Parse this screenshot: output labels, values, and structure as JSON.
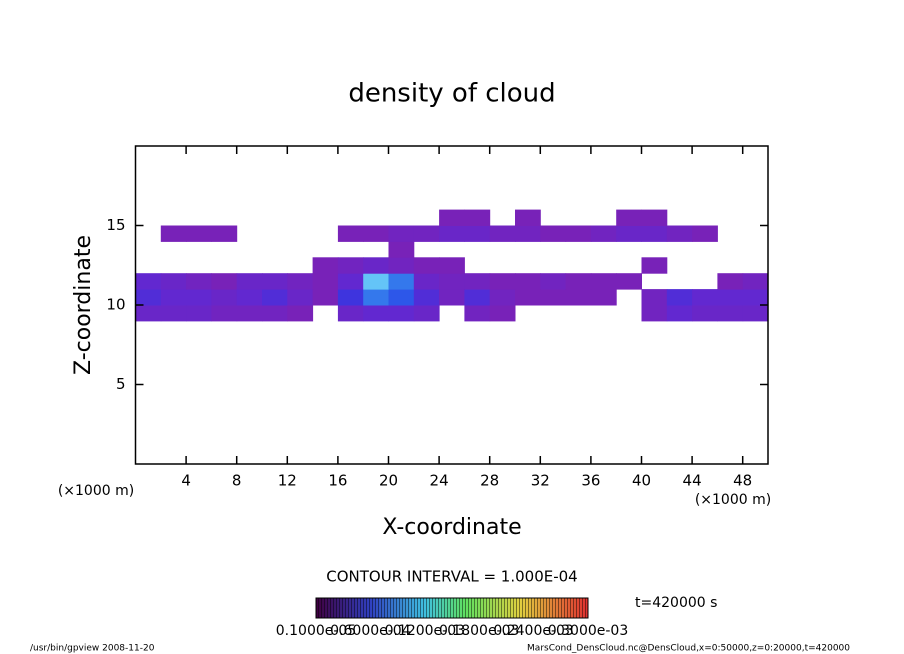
{
  "chart_data": {
    "type": "heatmap",
    "title": "density of cloud",
    "x_label": "X-coordinate",
    "y_label": "Z-coordinate",
    "x_unit": "(×1000 m)",
    "y_unit": "(×1000 m)",
    "xlim": [
      0,
      50
    ],
    "ylim": [
      0,
      20
    ],
    "xticks": [
      4,
      8,
      12,
      16,
      20,
      24,
      28,
      32,
      36,
      40,
      44,
      48
    ],
    "yticks": [
      5,
      10,
      15
    ],
    "x_edges": [
      0,
      2,
      4,
      6,
      8,
      10,
      12,
      14,
      16,
      18,
      20,
      22,
      24,
      26,
      28,
      30,
      32,
      34,
      36,
      38,
      40,
      42,
      44,
      46,
      48,
      50
    ],
    "y_edges": [
      9,
      10,
      11,
      12,
      13,
      14,
      15,
      16
    ],
    "clim": [
      0,
      0.00012
    ],
    "z": [
      [
        3e-05,
        3e-05,
        3e-05,
        2e-05,
        2e-05,
        2e-05,
        1e-05,
        null,
        3e-05,
        4e-05,
        4e-05,
        3e-05,
        null,
        2e-05,
        1e-05,
        null,
        null,
        null,
        null,
        null,
        2e-05,
        4e-05,
        3e-05,
        3e-05,
        3e-05
      ],
      [
        5e-05,
        4e-05,
        4e-05,
        3e-05,
        4e-05,
        5e-05,
        3e-05,
        1e-05,
        6e-05,
        9e-05,
        8e-05,
        5e-05,
        2e-05,
        5e-05,
        2e-05,
        1e-05,
        1e-05,
        1e-05,
        1e-05,
        null,
        2e-05,
        5e-05,
        4e-05,
        4e-05,
        4e-05
      ],
      [
        4e-05,
        3e-05,
        2e-05,
        1e-05,
        3e-05,
        3e-05,
        2e-05,
        1e-05,
        4e-05,
        0.00011,
        9e-05,
        3e-05,
        2e-05,
        2e-05,
        1e-05,
        1e-05,
        2e-05,
        1e-05,
        1e-05,
        1e-05,
        null,
        null,
        null,
        1e-05,
        2e-05
      ],
      [
        null,
        null,
        null,
        null,
        null,
        null,
        null,
        1e-05,
        2e-05,
        3e-05,
        2e-05,
        1e-05,
        1e-05,
        null,
        null,
        null,
        null,
        null,
        null,
        null,
        1e-05,
        null,
        null,
        null,
        null
      ],
      [
        null,
        null,
        null,
        null,
        null,
        null,
        null,
        null,
        null,
        null,
        1e-05,
        null,
        null,
        null,
        null,
        null,
        null,
        null,
        null,
        null,
        null,
        null,
        null,
        null,
        null
      ],
      [
        null,
        1e-05,
        1e-05,
        1e-05,
        null,
        null,
        null,
        null,
        1e-05,
        1e-05,
        2e-05,
        2e-05,
        3e-05,
        3e-05,
        2e-05,
        2e-05,
        1e-05,
        1e-05,
        2e-05,
        3e-05,
        3e-05,
        2e-05,
        1e-05,
        null,
        null
      ],
      [
        null,
        null,
        null,
        null,
        null,
        null,
        null,
        null,
        null,
        null,
        null,
        null,
        1e-05,
        1e-05,
        null,
        1e-05,
        null,
        null,
        null,
        1e-05,
        1e-05,
        null,
        null,
        null,
        null
      ]
    ],
    "contour_interval": "CONTOUR INTERVAL = 1.000E-04",
    "time_label": "t=420000 s",
    "colorbar_labels": [
      "0.1000e-05",
      "0.6000e-04",
      "0.1200e-03",
      "0.1800e-03",
      "0.2400e-03",
      "0.3000e-03"
    ],
    "footer_left": "/usr/bin/gpview   2008-11-20",
    "footer_right": "MarsCond_DensCloud.nc@DensCloud,x=0:50000,z=0:20000,t=420000"
  }
}
